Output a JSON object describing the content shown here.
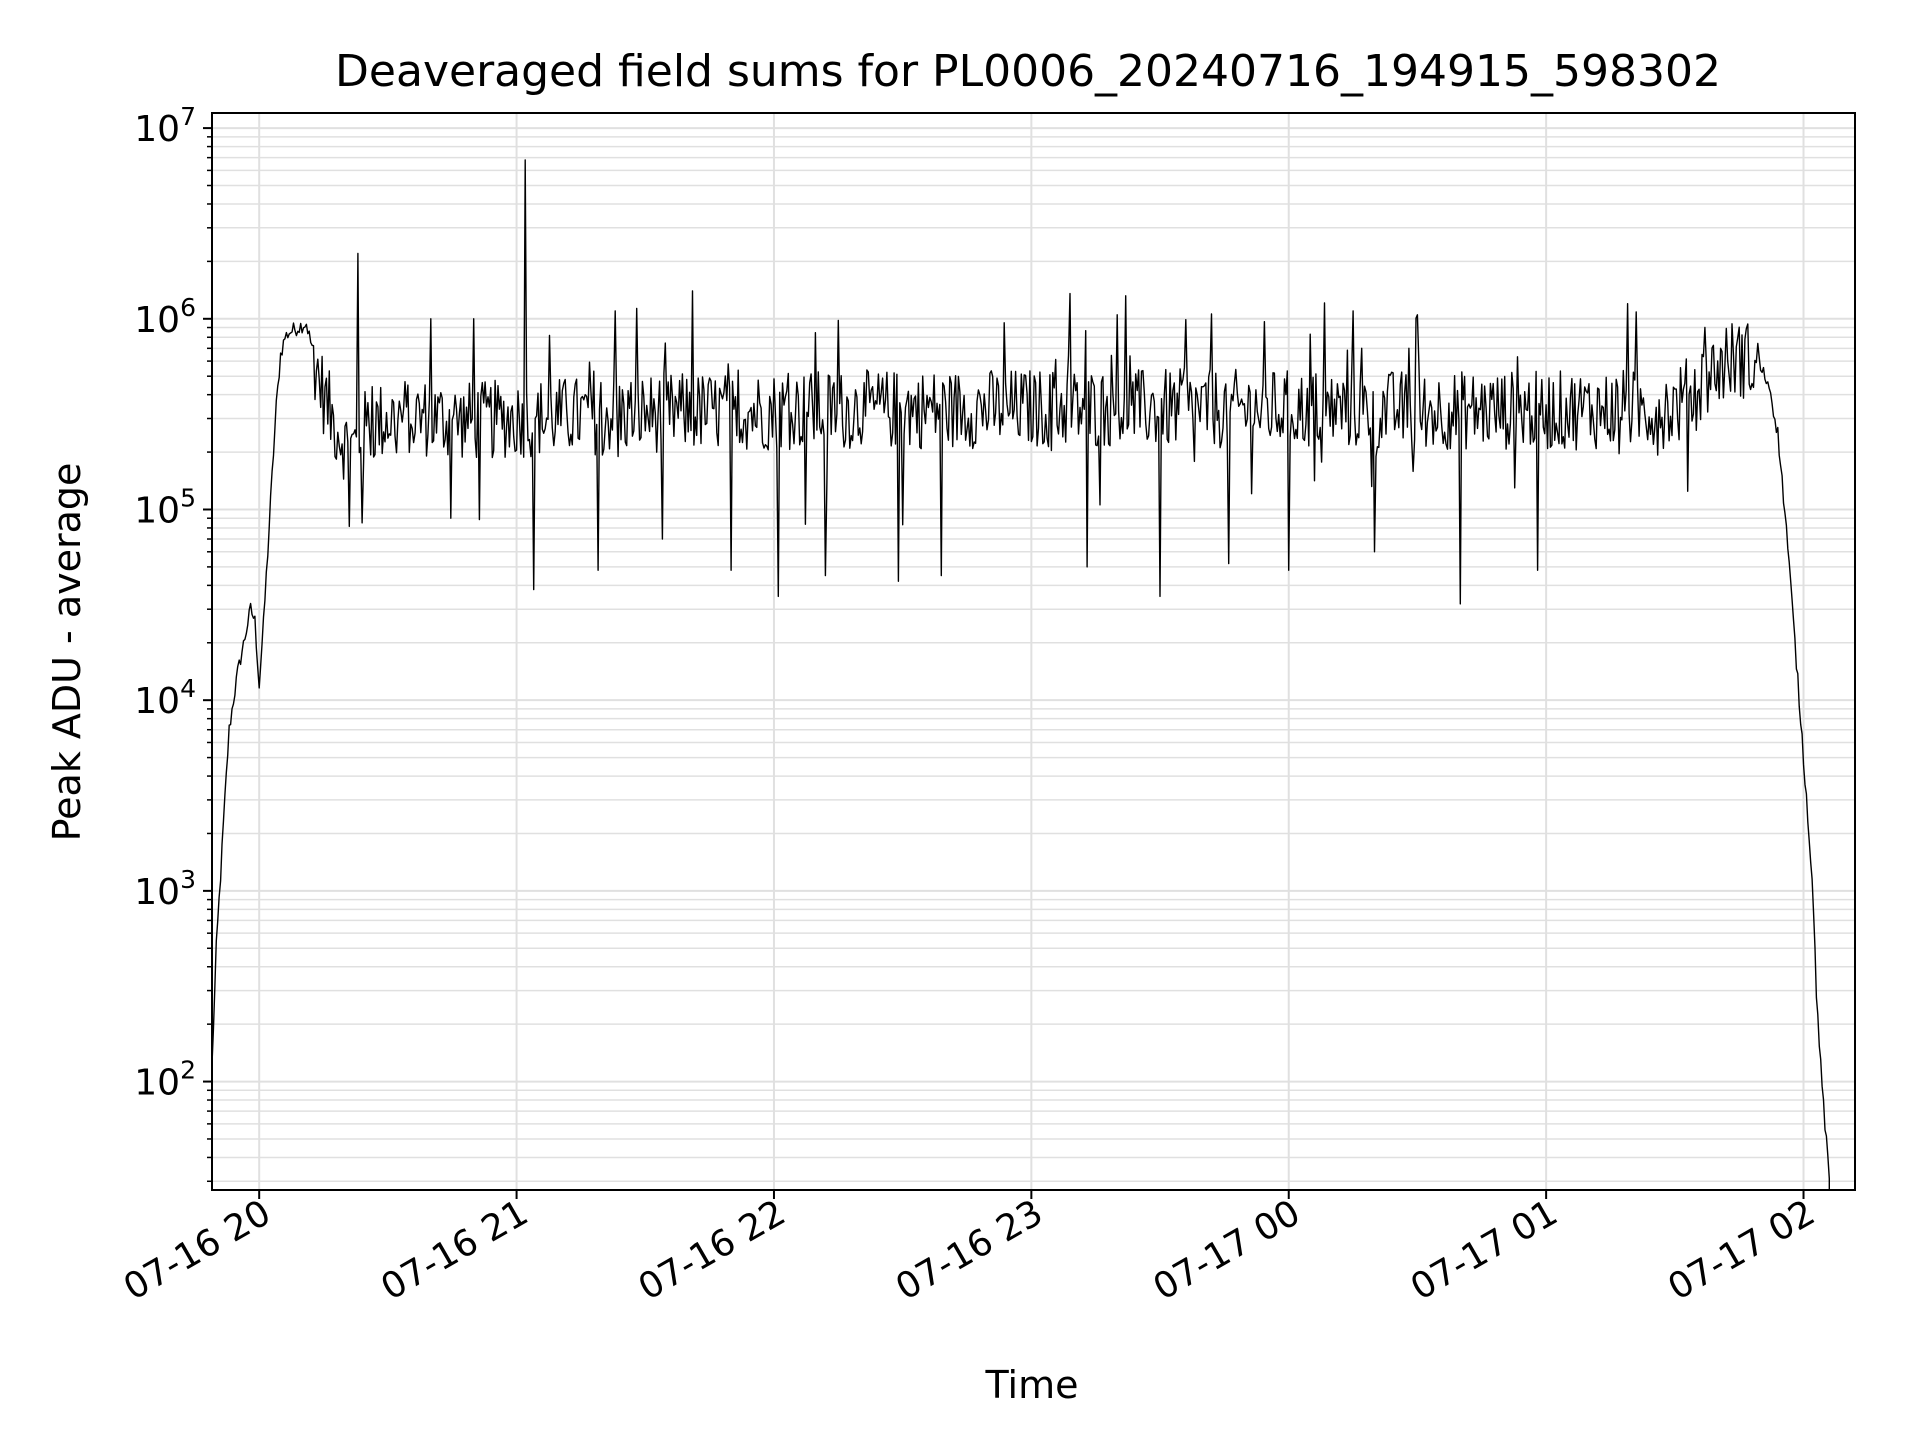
{
  "chart_data": {
    "type": "line",
    "title": "Deaveraged field sums for PL0006_20240716_194915_598302",
    "xlabel": "Time",
    "ylabel": "Peak ADU - average",
    "yscale": "log",
    "ylim": [
      27,
      12000000
    ],
    "xlim": [
      "2024-07-16 19:49",
      "2024-07-17 02:12"
    ],
    "grid": {
      "major": true,
      "minor_y": true
    },
    "line_color": "#000000",
    "grid_color": "#e0e0e0",
    "x_ticks": [
      {
        "time": "2024-07-16 20:00",
        "label": "07-16 20"
      },
      {
        "time": "2024-07-16 21:00",
        "label": "07-16 21"
      },
      {
        "time": "2024-07-16 22:00",
        "label": "07-16 22"
      },
      {
        "time": "2024-07-16 23:00",
        "label": "07-16 23"
      },
      {
        "time": "2024-07-17 00:00",
        "label": "07-17 00"
      },
      {
        "time": "2024-07-17 01:00",
        "label": "07-17 01"
      },
      {
        "time": "2024-07-17 02:00",
        "label": "07-17 02"
      }
    ],
    "y_ticks": [
      {
        "value": 100,
        "base": "10",
        "exp": "2"
      },
      {
        "value": 1000,
        "base": "10",
        "exp": "3"
      },
      {
        "value": 10000,
        "base": "10",
        "exp": "4"
      },
      {
        "value": 100000,
        "base": "10",
        "exp": "5"
      },
      {
        "value": 1000000,
        "base": "10",
        "exp": "6"
      },
      {
        "value": 10000000,
        "base": "10",
        "exp": "7"
      }
    ],
    "series": [
      {
        "x": [
          "2024-07-16 19:49",
          "2024-07-16 19:50",
          "2024-07-16 19:51",
          "2024-07-16 19:52",
          "2024-07-16 19:53",
          "2024-07-16 19:54",
          "2024-07-16 19:55",
          "2024-07-16 19:56",
          "2024-07-16 19:58",
          "2024-07-16 19:59",
          "2024-07-16 20:00",
          "2024-07-16 20:01",
          "2024-07-16 20:02",
          "2024-07-16 20:03",
          "2024-07-16 20:04",
          "2024-07-16 20:05",
          "2024-07-16 20:06",
          "2024-07-16 20:07",
          "2024-07-16 20:09",
          "2024-07-16 20:11",
          "2024-07-16 20:13",
          "2024-07-16 20:15",
          "2024-07-16 20:17",
          "2024-07-16 20:19",
          "2024-07-16 20:21",
          "2024-07-16 20:23",
          "2024-07-16 20:24",
          "2024-07-16 20:25",
          "2024-07-16 20:27",
          "2024-07-16 20:30",
          "2024-07-16 20:35",
          "2024-07-16 20:40",
          "2024-07-16 20:50",
          "2024-07-16 21:00",
          "2024-07-16 21:30",
          "2024-07-16 22:00",
          "2024-07-16 23:00",
          "2024-07-17 00:00",
          "2024-07-17 01:00",
          "2024-07-17 01:30",
          "2024-07-17 01:36",
          "2024-07-17 01:42",
          "2024-07-17 01:45",
          "2024-07-17 01:48",
          "2024-07-17 01:50",
          "2024-07-17 01:52",
          "2024-07-17 01:54",
          "2024-07-17 01:56",
          "2024-07-17 01:58",
          "2024-07-17 02:00",
          "2024-07-17 02:02",
          "2024-07-17 02:03",
          "2024-07-17 02:04",
          "2024-07-17 02:05",
          "2024-07-17 02:06"
        ],
        "y": [
          120,
          500,
          1200,
          3000,
          7000,
          10000,
          14000,
          18000,
          30000,
          26000,
          12000,
          25000,
          60000,
          150000,
          350000,
          650000,
          800000,
          850000,
          900000,
          950000,
          600000,
          400000,
          300000,
          250000,
          200000,
          230000,
          250000,
          270000,
          280000,
          300000,
          310000,
          300000,
          290000,
          300000,
          320000,
          330000,
          340000,
          335000,
          330000,
          340000,
          450000,
          600000,
          620000,
          600000,
          550000,
          450000,
          250000,
          80000,
          20000,
          5000,
          1200,
          300,
          120,
          60,
          30
        ]
      }
    ],
    "spikes_up": [
      {
        "time": "2024-07-16 20:23",
        "value": 2200000
      },
      {
        "time": "2024-07-16 21:02",
        "value": 6800000
      },
      {
        "time": "2024-07-16 20:40",
        "value": 1000000
      },
      {
        "time": "2024-07-16 20:50",
        "value": 1000000
      },
      {
        "time": "2024-07-16 21:23",
        "value": 1100000
      },
      {
        "time": "2024-07-16 21:41",
        "value": 1400000
      },
      {
        "time": "2024-07-16 23:20",
        "value": 1050000
      },
      {
        "time": "2024-07-17 00:15",
        "value": 1100000
      },
      {
        "time": "2024-07-17 00:30",
        "value": 1050000
      },
      {
        "time": "2024-07-17 01:19",
        "value": 1200000
      },
      {
        "time": "2024-07-17 01:37",
        "value": 900000
      }
    ],
    "spikes_down": [
      {
        "time": "2024-07-16 20:24",
        "value": 85000
      },
      {
        "time": "2024-07-16 21:04",
        "value": 38000
      },
      {
        "time": "2024-07-16 21:19",
        "value": 48000
      },
      {
        "time": "2024-07-16 21:34",
        "value": 70000
      },
      {
        "time": "2024-07-16 21:50",
        "value": 48000
      },
      {
        "time": "2024-07-16 22:01",
        "value": 35000
      },
      {
        "time": "2024-07-16 22:12",
        "value": 45000
      },
      {
        "time": "2024-07-16 22:29",
        "value": 42000
      },
      {
        "time": "2024-07-16 22:39",
        "value": 45000
      },
      {
        "time": "2024-07-16 23:13",
        "value": 50000
      },
      {
        "time": "2024-07-16 23:30",
        "value": 35000
      },
      {
        "time": "2024-07-16 23:46",
        "value": 52000
      },
      {
        "time": "2024-07-17 00:00",
        "value": 48000
      },
      {
        "time": "2024-07-17 00:20",
        "value": 60000
      },
      {
        "time": "2024-07-17 00:40",
        "value": 32000
      },
      {
        "time": "2024-07-17 00:58",
        "value": 48000
      }
    ]
  }
}
